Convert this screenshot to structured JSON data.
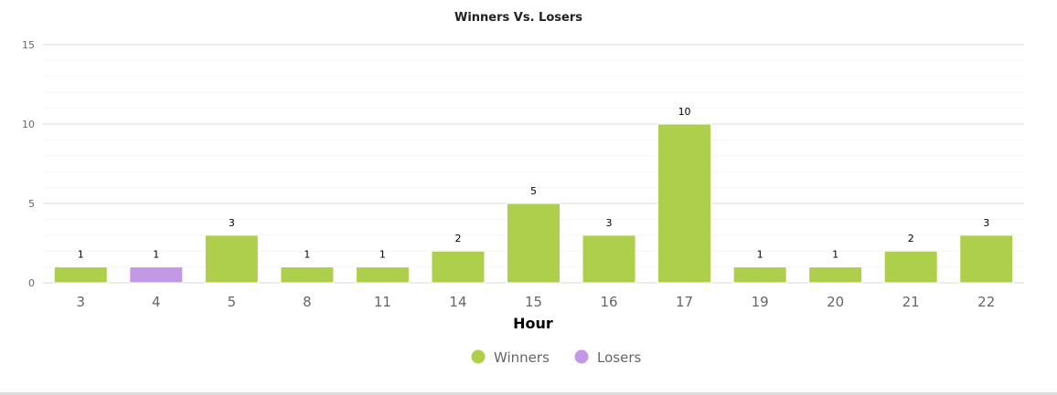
{
  "chart_data": {
    "type": "bar",
    "title": "Winners Vs. Losers",
    "xlabel": "Hour",
    "ylabel": "",
    "categories": [
      "3",
      "4",
      "5",
      "8",
      "11",
      "14",
      "15",
      "16",
      "17",
      "19",
      "20",
      "21",
      "22"
    ],
    "series": [
      {
        "name": "Winners",
        "color": "#aecf4b",
        "values": [
          1,
          0,
          3,
          1,
          1,
          2,
          5,
          3,
          10,
          1,
          1,
          2,
          3
        ]
      },
      {
        "name": "Losers",
        "color": "#c399e6",
        "values": [
          0,
          1,
          0,
          0,
          0,
          0,
          0,
          0,
          0,
          0,
          0,
          0,
          0
        ]
      }
    ],
    "ylim": [
      0,
      15
    ],
    "yticks": [
      0,
      5,
      10,
      15
    ],
    "grid": true,
    "stacked": true,
    "data_labels": true,
    "legend": "bottom"
  }
}
